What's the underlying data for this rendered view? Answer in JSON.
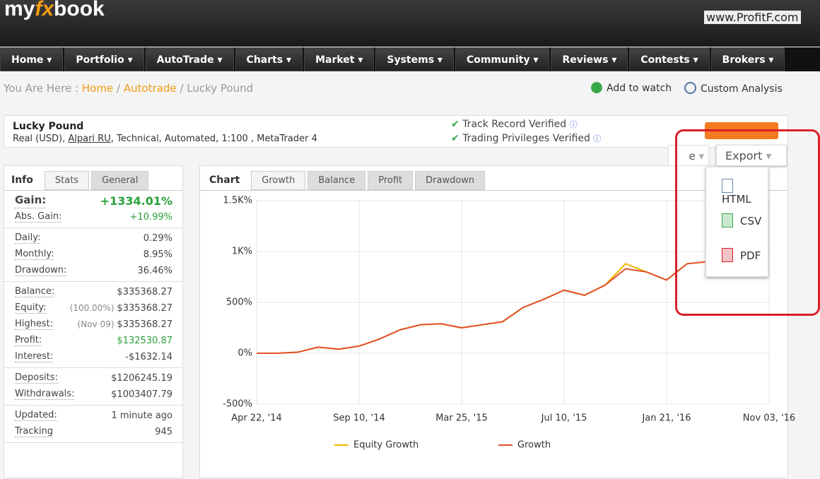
{
  "header": {
    "logo": [
      "my",
      "fx",
      "book"
    ],
    "watermark": "www.ProfitF.com"
  },
  "nav": [
    "Home ▾",
    "Portfolio ▾",
    "AutoTrade ▾",
    "Charts ▾",
    "Market ▾",
    "Systems ▾",
    "Community ▾",
    "Reviews ▾",
    "Contests ▾",
    "Brokers ▾"
  ],
  "breadcrumb": {
    "prefix": "You Are Here :",
    "links": [
      "Home",
      "Autotrade"
    ],
    "current": "Lucky Pound",
    "separator": "/"
  },
  "actions": [
    "Add to watch",
    "Custom Analysis"
  ],
  "account": {
    "name": "Lucky Pound",
    "details": [
      "Real (USD), ",
      "Alpari RU",
      ", Technical, Automated, 1:100 , MetaTrader 4"
    ],
    "verified": [
      "Track Record Verified",
      "Trading Privileges Verified"
    ]
  },
  "info": {
    "title": "Info",
    "tabs": [
      "Stats",
      "General"
    ],
    "groups": [
      [
        {
          "label": "Gain:",
          "value": "+1334.01%"
        },
        {
          "label": "Abs. Gain:",
          "value": "+10.99%"
        }
      ],
      [
        {
          "label": "Daily:",
          "value": "0.29%"
        },
        {
          "label": "Monthly:",
          "value": "8.95%"
        },
        {
          "label": "Drawdown:",
          "value": "36.46%"
        }
      ],
      [
        {
          "label": "Balance:",
          "value": "$335368.27"
        },
        {
          "label": "Equity:",
          "note": "(100.00%)",
          "value": "$335368.27"
        },
        {
          "label": "Highest:",
          "note": "(Nov 09)",
          "value": "$335368.27"
        },
        {
          "label": "Profit:",
          "value": "$132530.87"
        },
        {
          "label": "Interest:",
          "value": "-$1632.14"
        }
      ],
      [
        {
          "label": "Deposits:",
          "value": "$1206245.19"
        },
        {
          "label": "Withdrawals:",
          "value": "$1003407.79"
        }
      ],
      [
        {
          "label": "Updated:",
          "value": "1 minute ago"
        },
        {
          "label": "Tracking",
          "value": "945"
        }
      ]
    ]
  },
  "chart_panel": {
    "title": "Chart",
    "tabs": [
      "Growth",
      "Balance",
      "Profit",
      "Drawdown"
    ]
  },
  "chart_data": {
    "type": "line",
    "x_labels": [
      "Apr 22, '14",
      "Sep 10, '14",
      "Mar 25, '15",
      "Jul 10, '15",
      "Jan 21, '16",
      "Nov 03, '16"
    ],
    "ylim": [
      -500,
      1500
    ],
    "yticks": [
      {
        "value": 1500,
        "label": "1.5K%"
      },
      {
        "value": 1000,
        "label": "1K%"
      },
      {
        "value": 500,
        "label": "500%"
      },
      {
        "value": 0,
        "label": "0%"
      },
      {
        "value": -500,
        "label": "-500%"
      }
    ],
    "grid": true,
    "series": [
      {
        "name": "Equity Growth",
        "color": "#f5b400",
        "values": [
          0,
          0,
          10,
          60,
          40,
          70,
          140,
          230,
          280,
          290,
          250,
          280,
          310,
          450,
          530,
          620,
          570,
          670,
          880,
          800,
          720,
          880,
          900,
          null,
          null,
          null
        ]
      },
      {
        "name": "Growth",
        "color": "#e0502a",
        "values": [
          0,
          0,
          10,
          60,
          40,
          70,
          140,
          230,
          280,
          290,
          250,
          280,
          310,
          450,
          530,
          620,
          570,
          670,
          830,
          800,
          720,
          880,
          900,
          null,
          null,
          null
        ]
      }
    ]
  },
  "export": {
    "hidden_button": "e",
    "button": "Export",
    "items": [
      "HTML",
      "CSV",
      "PDF"
    ]
  }
}
